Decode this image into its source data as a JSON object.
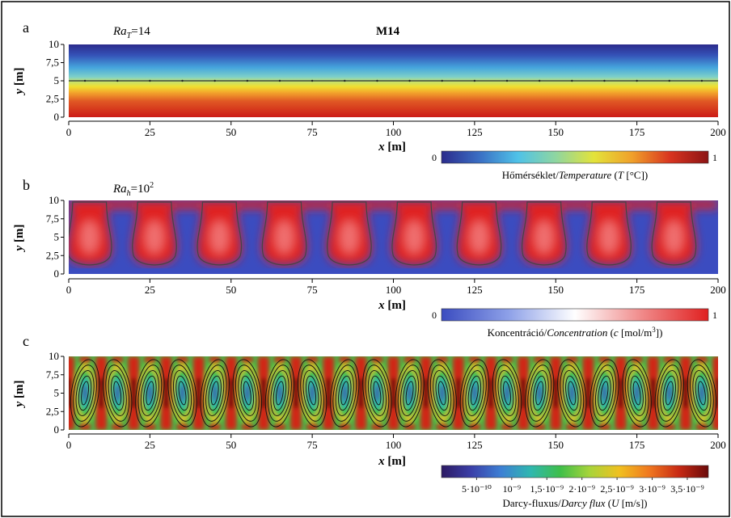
{
  "figure": {
    "title": "M14",
    "panels": [
      {
        "letter": "a",
        "ra_symbol": "Ra",
        "ra_sub": "T",
        "ra_value": "=14",
        "ra_exp": "",
        "xlabel_var": "x",
        "xlabel_unit": " [m]",
        "ylabel_var": "y",
        "ylabel_unit": " [m]",
        "y_ticks": [
          "0",
          "2,5",
          "5",
          "7,5",
          "10"
        ],
        "x_ticks": [
          "0",
          "25",
          "50",
          "75",
          "100",
          "125",
          "150",
          "175",
          "200"
        ],
        "colorbar": {
          "ticks": [
            "0",
            "1"
          ],
          "label_plain": "Hőmérséklet/",
          "label_italic": "Temperature",
          "label_tail": " (",
          "label_var": "T",
          "label_unit": " [°C])",
          "colors": [
            "#2b2b8c",
            "#3a6fc4",
            "#4fc2e8",
            "#8fd6a0",
            "#e3e33a",
            "#f0a02a",
            "#d83420",
            "#8c1414"
          ]
        }
      },
      {
        "letter": "b",
        "ra_symbol": "Ra",
        "ra_sub": "h",
        "ra_value": "=10",
        "ra_exp": "2",
        "xlabel_var": "x",
        "xlabel_unit": " [m]",
        "ylabel_var": "y",
        "ylabel_unit": " [m]",
        "y_ticks": [
          "0",
          "2,5",
          "5",
          "7,5",
          "10"
        ],
        "x_ticks": [
          "0",
          "25",
          "50",
          "75",
          "100",
          "125",
          "150",
          "175",
          "200"
        ],
        "colorbar": {
          "ticks": [
            "0",
            "1"
          ],
          "label_plain": "Koncentráció/",
          "label_italic": "Concentration",
          "label_tail": " (",
          "label_var": "c",
          "label_unit": " [mol/m",
          "label_sup": "3",
          "label_end": "])",
          "colors": [
            "#3b4cc0",
            "#8da0e8",
            "#ffffff",
            "#f08a8a",
            "#e02020"
          ]
        }
      },
      {
        "letter": "c",
        "xlabel_var": "x",
        "xlabel_unit": " [m]",
        "ylabel_var": "y",
        "ylabel_unit": " [m]",
        "y_ticks": [
          "0",
          "2,5",
          "5",
          "7,5",
          "10"
        ],
        "x_ticks": [
          "0",
          "25",
          "50",
          "75",
          "100",
          "125",
          "150",
          "175",
          "200"
        ],
        "colorbar": {
          "ticks": [
            "5·10⁻¹⁰",
            "10⁻⁹",
            "1,5·10⁻⁹",
            "2·10⁻⁹",
            "2,5·10⁻⁹",
            "3·10⁻⁹",
            "3,5·10⁻⁹"
          ],
          "label_plain": "Darcy-fluxus/",
          "label_italic": "Darcy flux",
          "label_tail": " (",
          "label_var": "U",
          "label_unit": " [m/s])",
          "colors": [
            "#2c1a63",
            "#3b3fa8",
            "#3d7fd4",
            "#2fb7b0",
            "#3fbf4a",
            "#a8d43a",
            "#f0c020",
            "#f07820",
            "#c82a14",
            "#6a0a0a"
          ]
        }
      }
    ]
  },
  "chart_data": [
    {
      "type": "heatmap",
      "panel": "a",
      "title": "M14",
      "xlabel": "x [m]",
      "ylabel": "y [m]",
      "xlim": [
        0,
        200
      ],
      "ylim": [
        0,
        10
      ],
      "field": "temperature",
      "value_range": [
        0,
        1
      ],
      "description_values": {
        "y_at_value_1": 0,
        "y_at_value_0": 10,
        "contour_y": 5
      },
      "colorbar_label": "Hőmérséklet/Temperature (T [°C])"
    },
    {
      "type": "heatmap",
      "panel": "b",
      "xlabel": "x [m]",
      "ylabel": "y [m]",
      "xlim": [
        0,
        200
      ],
      "ylim": [
        0,
        10
      ],
      "field": "concentration",
      "value_range": [
        0,
        1
      ],
      "fingers": 10,
      "finger_period_m": 20,
      "colorbar_label": "Koncentráció/Concentration (c [mol/m3])"
    },
    {
      "type": "heatmap",
      "panel": "c",
      "xlabel": "x [m]",
      "ylabel": "y [m]",
      "xlim": [
        0,
        200
      ],
      "ylim": [
        0,
        10
      ],
      "field": "darcy_flux",
      "value_range": [
        0,
        3.8e-09
      ],
      "cells": 20,
      "cell_width_m": 10,
      "colorbar_ticks": [
        5e-10,
        1e-09,
        1.5e-09,
        2e-09,
        2.5e-09,
        3e-09,
        3.5e-09
      ],
      "colorbar_label": "Darcy-fluxus/Darcy flux (U [m/s])"
    }
  ]
}
